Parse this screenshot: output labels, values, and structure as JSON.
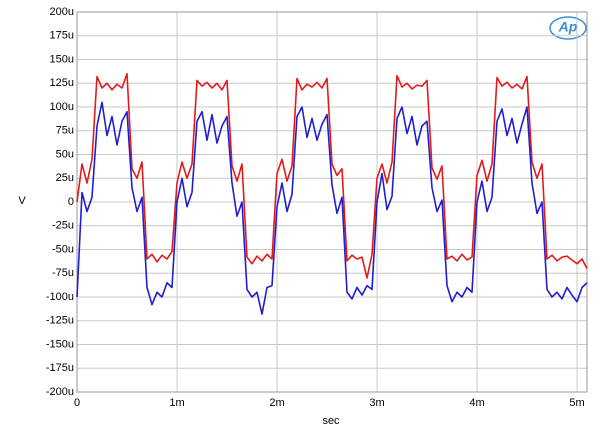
{
  "chart_data": {
    "type": "line",
    "logo": "Ap",
    "xlabel": "sec",
    "ylabel": "V",
    "x": [
      0,
      0.05,
      0.1,
      0.15,
      0.2,
      0.25,
      0.3,
      0.35,
      0.4,
      0.45,
      0.5,
      0.55,
      0.6,
      0.65,
      0.7,
      0.75,
      0.8,
      0.85,
      0.9,
      0.95,
      1,
      1.05,
      1.1,
      1.15,
      1.2,
      1.25,
      1.3,
      1.35,
      1.4,
      1.45,
      1.5,
      1.55,
      1.6,
      1.65,
      1.7,
      1.75,
      1.8,
      1.85,
      1.9,
      1.95,
      2,
      2.05,
      2.1,
      2.15,
      2.2,
      2.25,
      2.3,
      2.35,
      2.4,
      2.45,
      2.5,
      2.55,
      2.6,
      2.65,
      2.7,
      2.75,
      2.8,
      2.85,
      2.9,
      2.95,
      3,
      3.05,
      3.1,
      3.15,
      3.2,
      3.25,
      3.3,
      3.35,
      3.4,
      3.45,
      3.5,
      3.55,
      3.6,
      3.65,
      3.7,
      3.75,
      3.8,
      3.85,
      3.9,
      3.95,
      4,
      4.05,
      4.1,
      4.15,
      4.2,
      4.25,
      4.3,
      4.35,
      4.4,
      4.45,
      4.5,
      4.55,
      4.6,
      4.65,
      4.7,
      4.75,
      4.8,
      4.85,
      4.9,
      4.95,
      5,
      5.05,
      5.1
    ],
    "series": [
      {
        "color": "#e31a1c",
        "values": [
          0,
          40,
          20,
          45,
          132,
          120,
          125,
          118,
          124,
          120,
          135,
          35,
          25,
          42,
          -60,
          -55,
          -63,
          -56,
          -60,
          -52,
          20,
          42,
          25,
          40,
          128,
          122,
          126,
          120,
          125,
          118,
          128,
          38,
          22,
          40,
          -58,
          -65,
          -57,
          -62,
          -55,
          -60,
          30,
          45,
          22,
          38,
          130,
          118,
          124,
          121,
          126,
          120,
          130,
          40,
          28,
          35,
          -62,
          -56,
          -60,
          -58,
          -80,
          -55,
          25,
          40,
          20,
          42,
          133,
          121,
          125,
          119,
          123,
          122,
          128,
          36,
          24,
          38,
          -60,
          -57,
          -62,
          -55,
          -61,
          -58,
          28,
          44,
          22,
          40,
          131,
          122,
          126,
          120,
          124,
          119,
          132,
          42,
          25,
          40,
          -60,
          -56,
          -62,
          -58,
          -57,
          -61,
          -65,
          -60,
          -70
        ]
      },
      {
        "color": "#1f1fcf",
        "values": [
          -100,
          10,
          -10,
          5,
          80,
          105,
          70,
          90,
          60,
          85,
          95,
          15,
          -10,
          5,
          -90,
          -108,
          -95,
          -100,
          -85,
          -90,
          0,
          25,
          -5,
          10,
          85,
          95,
          65,
          92,
          62,
          80,
          90,
          20,
          -15,
          0,
          -92,
          -100,
          -95,
          -118,
          -90,
          -88,
          -5,
          20,
          -10,
          8,
          90,
          100,
          68,
          88,
          65,
          82,
          92,
          18,
          -12,
          5,
          -95,
          -102,
          -90,
          -98,
          -88,
          -92,
          0,
          30,
          -8,
          6,
          88,
          100,
          72,
          90,
          60,
          80,
          85,
          15,
          -10,
          2,
          -88,
          -105,
          -95,
          -100,
          -90,
          -95,
          0,
          22,
          -10,
          5,
          85,
          98,
          70,
          88,
          62,
          82,
          100,
          20,
          -12,
          0,
          -92,
          -100,
          -95,
          -102,
          -90,
          -98,
          -105,
          -90,
          -85
        ]
      }
    ],
    "xlim": [
      0,
      5.1
    ],
    "xticks": [
      0,
      {
        "value": 1,
        "label": "1m"
      },
      {
        "value": 2,
        "label": "2m"
      },
      {
        "value": 3,
        "label": "3m"
      },
      {
        "value": 4,
        "label": "4m"
      },
      {
        "value": 5,
        "label": "5m"
      }
    ],
    "ylim": [
      -200,
      200
    ],
    "yticks": [
      {
        "value": -200,
        "label": "-200u"
      },
      {
        "value": -175,
        "label": "-175u"
      },
      {
        "value": -150,
        "label": "-150u"
      },
      {
        "value": -125,
        "label": "-125u"
      },
      {
        "value": -100,
        "label": "-100u"
      },
      {
        "value": -75,
        "label": "-75u"
      },
      {
        "value": -50,
        "label": "-50u"
      },
      {
        "value": -25,
        "label": "-25u"
      },
      0,
      {
        "value": 25,
        "label": "25u"
      },
      {
        "value": 50,
        "label": "50u"
      },
      {
        "value": 75,
        "label": "75u"
      },
      {
        "value": 100,
        "label": "100u"
      },
      {
        "value": 125,
        "label": "125u"
      },
      {
        "value": 150,
        "label": "150u"
      },
      {
        "value": 175,
        "label": "175u"
      },
      {
        "value": 200,
        "label": "200u"
      }
    ],
    "grid": true
  }
}
